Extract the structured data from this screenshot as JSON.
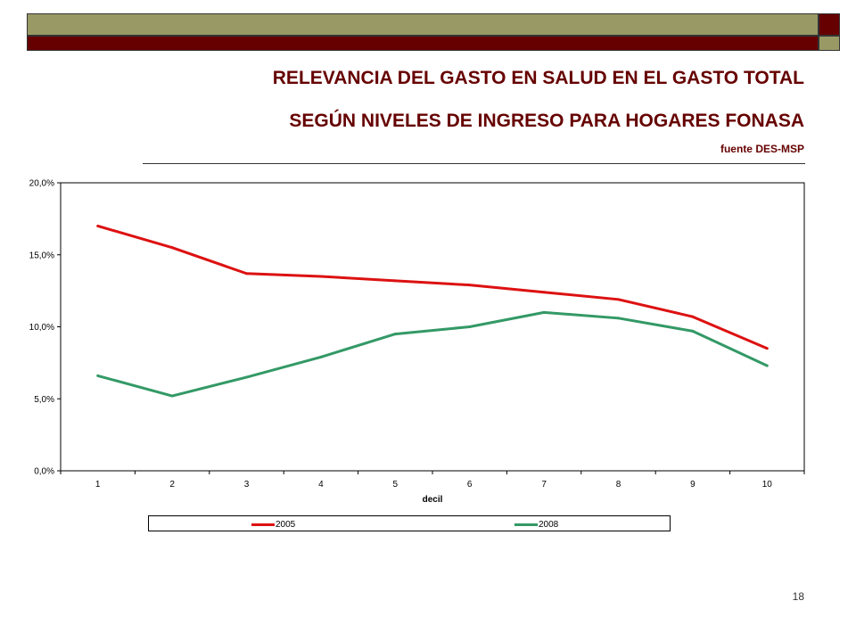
{
  "header": {
    "title_line1": "RELEVANCIA DEL GASTO EN SALUD EN EL GASTO TOTAL",
    "title_line2": "SEGÚN NIVELES DE INGRESO PARA HOGARES FONASA",
    "source": "fuente DES-MSP"
  },
  "colors": {
    "band_dark": "#660000",
    "band_olive": "#999966",
    "title": "#660000"
  },
  "page_number": "18",
  "chart_data": {
    "type": "line",
    "xlabel": "decil",
    "ylabel": "",
    "categories": [
      "1",
      "2",
      "3",
      "4",
      "5",
      "6",
      "7",
      "8",
      "9",
      "10"
    ],
    "y_ticks": [
      "0,0%",
      "5,0%",
      "10,0%",
      "15,0%",
      "20,0%"
    ],
    "ylim": [
      0,
      20
    ],
    "grid": false,
    "legend_position": "bottom",
    "series": [
      {
        "name": "2005",
        "color": "#dd1111",
        "values": [
          17.0,
          15.5,
          13.7,
          13.5,
          13.2,
          12.9,
          12.4,
          11.9,
          10.7,
          8.5
        ]
      },
      {
        "name": "2008",
        "color": "#339966",
        "values": [
          6.6,
          5.2,
          6.5,
          7.9,
          9.5,
          10.0,
          11.0,
          10.6,
          9.7,
          7.3
        ]
      }
    ]
  }
}
